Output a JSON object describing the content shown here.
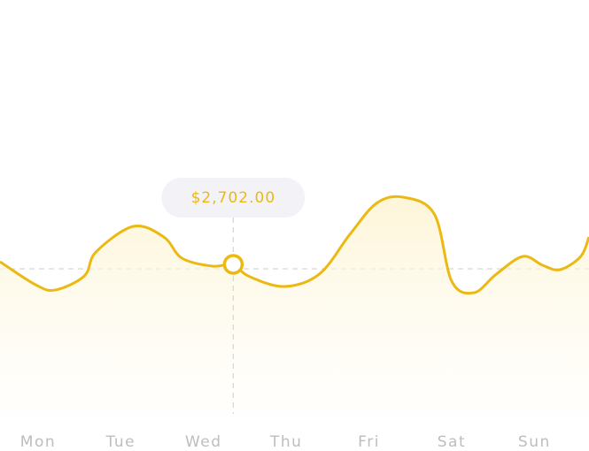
{
  "chart_data": {
    "type": "line",
    "x": [
      -0.46,
      -0.03,
      0.21,
      0.56,
      0.7,
      1.15,
      1.52,
      1.74,
      2.11,
      2.36,
      2.54,
      2.97,
      3.4,
      3.77,
      4.09,
      4.41,
      4.79,
      5.0,
      5.27,
      5.54,
      5.86,
      6.1,
      6.31,
      6.56,
      6.66
    ],
    "series": [
      {
        "color": "#ebb912",
        "values": [
          2749,
          2338,
          2244,
          2496,
          2923,
          3381,
          3192,
          2812,
          2670,
          2702,
          2496,
          2307,
          2528,
          3239,
          3792,
          3903,
          3602,
          2402,
          2196,
          2528,
          2844,
          2686,
          2607,
          2844,
          3192
        ],
        "value_labels": [
          null,
          null,
          null,
          null,
          null,
          null,
          null,
          null,
          null,
          "$2,702.00",
          null,
          null,
          null,
          null,
          null,
          null,
          null,
          null,
          null,
          null,
          null,
          null,
          null,
          null,
          null
        ]
      }
    ],
    "xlim": [
      -0.46,
      6.66
    ],
    "ylim": [
      0,
      4000
    ],
    "xticks": [
      {
        "value": 0,
        "label": "Mon"
      },
      {
        "value": 1,
        "label": "Tue"
      },
      {
        "value": 2,
        "label": "Wed"
      },
      {
        "value": 3,
        "label": "Thu"
      },
      {
        "value": 4,
        "label": "Fri"
      },
      {
        "value": 5,
        "label": "Sat"
      },
      {
        "value": 6,
        "label": "Sun"
      }
    ],
    "reference_line": 2623
  }
}
